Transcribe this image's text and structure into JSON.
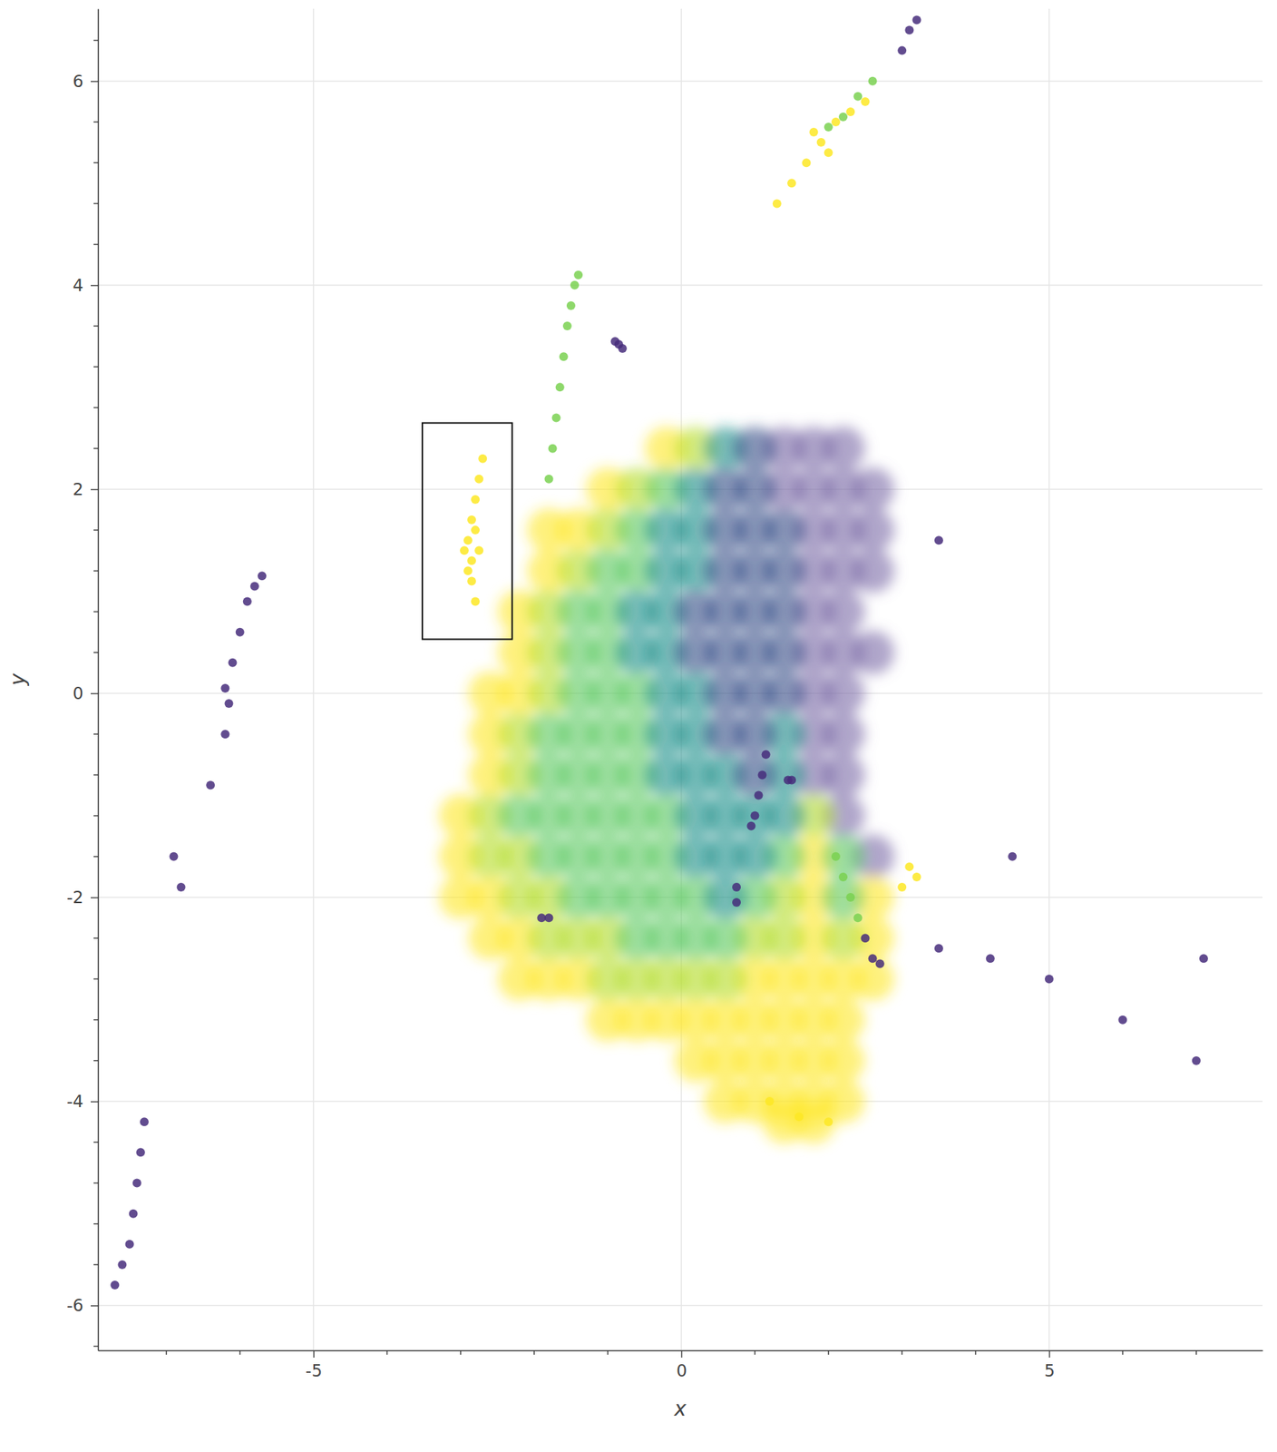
{
  "chart_data": {
    "type": "scatter",
    "x_label": "x",
    "y_label": "y",
    "xlim": [
      -7.93,
      7.9
    ],
    "ylim": [
      -6.44,
      6.71
    ],
    "xticks": [
      -5,
      0,
      5
    ],
    "yticks": [
      -6,
      -4,
      -2,
      0,
      2,
      4,
      6
    ],
    "x_minor_ticks": [
      -7,
      -6,
      -4,
      -3,
      -2,
      -1,
      1,
      2,
      3,
      4,
      6,
      7
    ],
    "y_minor_ticks": [
      -6.4,
      -5.6,
      -5.2,
      -4.8,
      -4.4,
      -3.6,
      -3.2,
      -2.8,
      -2.4,
      -1.6,
      -1.2,
      -0.8,
      -0.4,
      0.4,
      0.8,
      1.2,
      1.6,
      2.4,
      2.8,
      3.2,
      3.6,
      4.4,
      4.8,
      5.2,
      5.6,
      6.4
    ],
    "grid": true,
    "selection": {
      "x": [
        -3.52,
        -2.3
      ],
      "y": [
        0.53,
        2.65
      ]
    },
    "series": [
      {
        "color": "#7b6ba6",
        "marker": "circle",
        "x": [
          1.4,
          1.8,
          2.2,
          1.4,
          1.8,
          2.2,
          2.6,
          1.8,
          2.2,
          2.6,
          1.8,
          2.2,
          2.6,
          1.8,
          2.2,
          1.8,
          2.2,
          2.6,
          1.8,
          2.2,
          1.8,
          2.2,
          1.8,
          2.2,
          2.2,
          2.6
        ],
        "values": [
          2.4,
          2.4,
          2.4,
          2.0,
          2.0,
          2.0,
          2.0,
          1.6,
          1.6,
          1.6,
          1.2,
          1.2,
          1.2,
          0.8,
          0.8,
          0.4,
          0.4,
          0.4,
          0,
          0,
          -0.4,
          -0.4,
          -0.8,
          -0.8,
          -1.2,
          -1.6
        ]
      },
      {
        "color": "#fde725",
        "marker": "circle",
        "x": [
          -0.2,
          -1.0,
          -1.8,
          -1.4,
          -1.8,
          -2.2,
          -2.2,
          -2.6,
          -2.2,
          -2.6,
          -2.6,
          -3.0,
          -3.0,
          1.8,
          -3.0,
          -2.6,
          1.8,
          2.6,
          -2.6,
          -2.2,
          1.8,
          2.6,
          -2.2,
          -1.8,
          -1.4,
          1.0,
          1.4,
          1.8,
          2.2,
          2.6,
          -1.0,
          -0.6,
          -0.2,
          0.2,
          0.6,
          1.0,
          1.4,
          1.8,
          2.2,
          0.2,
          0.6,
          1.0,
          1.4,
          1.8,
          2.2,
          0.6,
          1.0,
          1.4,
          1.8,
          2.2,
          1.4,
          1.8
        ],
        "values": [
          2.4,
          2.0,
          1.6,
          1.6,
          1.2,
          0.8,
          0.4,
          0,
          0,
          -0.4,
          -0.8,
          -1.2,
          -1.6,
          -1.6,
          -2.0,
          -2.0,
          -2.0,
          -2.0,
          -2.4,
          -2.4,
          -2.4,
          -2.4,
          -2.8,
          -2.8,
          -2.8,
          -2.8,
          -2.8,
          -2.8,
          -2.8,
          -2.8,
          -3.2,
          -3.2,
          -3.2,
          -3.2,
          -3.2,
          -3.2,
          -3.2,
          -3.2,
          -3.2,
          -3.6,
          -3.6,
          -3.6,
          -3.6,
          -3.6,
          -3.6,
          -4.0,
          -4.0,
          -4.0,
          -4.0,
          -4.0,
          -4.2,
          -4.2
        ]
      },
      {
        "color": "#b5de2b",
        "marker": "circle",
        "x": [
          0.2,
          -0.6,
          -1.0,
          -1.4,
          -1.8,
          -1.8,
          -1.8,
          -2.2,
          -2.2,
          -2.6,
          1.8,
          -2.6,
          -2.2,
          -2.2,
          -1.8,
          1.4,
          -1.8,
          -1.4,
          -1.0,
          1.0,
          1.4,
          2.2,
          -1.0,
          -0.6,
          -0.2,
          0.2,
          0.6
        ],
        "values": [
          2.4,
          2.0,
          1.6,
          1.2,
          0.8,
          0.4,
          0,
          -0.4,
          -0.8,
          -1.2,
          -1.2,
          -1.6,
          -1.6,
          -2.0,
          -2.0,
          -2.0,
          -2.4,
          -2.4,
          -2.4,
          -2.4,
          -2.4,
          -2.4,
          -2.8,
          -2.8,
          -2.8,
          -2.8,
          -2.8
        ]
      },
      {
        "color": "#5ec962",
        "marker": "circle",
        "x": [
          -0.2,
          -0.6,
          -1.0,
          -0.6,
          -1.4,
          -1.0,
          -1.4,
          -1.0,
          -1.4,
          -1.0,
          -0.6,
          -1.8,
          -1.4,
          -1.0,
          -0.6,
          -1.8,
          -1.4,
          -1.0,
          -0.6,
          -2.2,
          -1.8,
          -1.4,
          -1.0,
          -0.6,
          -0.2,
          -1.8,
          -1.4,
          -1.0,
          -0.6,
          -0.2,
          1.4,
          2.2,
          -1.4,
          -1.0,
          -0.6,
          -0.2,
          0.2,
          1.0,
          2.2,
          -0.6,
          -0.2,
          0.2,
          0.6
        ],
        "values": [
          2.0,
          1.6,
          1.2,
          1.2,
          0.8,
          0.8,
          0.4,
          0.4,
          0,
          0,
          0,
          -0.4,
          -0.4,
          -0.4,
          -0.4,
          -0.8,
          -0.8,
          -0.8,
          -0.8,
          -1.2,
          -1.2,
          -1.2,
          -1.2,
          -1.2,
          -1.2,
          -1.6,
          -1.6,
          -1.6,
          -1.6,
          -1.6,
          -1.6,
          -1.6,
          -2.0,
          -2.0,
          -2.0,
          -2.0,
          -2.0,
          -2.0,
          -2.0,
          -2.4,
          -2.4,
          -2.4,
          -2.4
        ]
      },
      {
        "color": "#21918c",
        "marker": "circle",
        "x": [
          0.6,
          0.2,
          -0.2,
          0.2,
          -0.2,
          0.2,
          -0.6,
          -0.2,
          -0.6,
          -0.2,
          -0.2,
          0.2,
          -0.2,
          0.2,
          1.4,
          -0.2,
          0.2,
          0.6,
          1.4,
          0.2,
          0.6,
          1.0,
          1.4,
          0.2,
          0.6,
          1.0,
          0.6
        ],
        "values": [
          2.4,
          2.0,
          1.6,
          1.6,
          1.2,
          1.2,
          0.8,
          0.8,
          0.4,
          0.4,
          0,
          0,
          -0.4,
          -0.4,
          -0.4,
          -0.8,
          -0.8,
          -0.8,
          -0.8,
          -1.2,
          -1.2,
          -1.2,
          -1.2,
          -1.6,
          -1.6,
          -1.6,
          -2.0
        ]
      },
      {
        "color": "#3b528b",
        "marker": "circle",
        "x": [
          1.0,
          0.6,
          1.0,
          0.6,
          1.0,
          1.4,
          0.6,
          1.0,
          1.4,
          0.2,
          0.6,
          1.0,
          1.4,
          0.2,
          0.6,
          1.0,
          1.4,
          0.6,
          1.0,
          1.4,
          0.6,
          1.0,
          1.0
        ],
        "values": [
          2.4,
          2.0,
          2.0,
          1.6,
          1.6,
          1.6,
          1.2,
          1.2,
          1.2,
          0.8,
          0.8,
          0.8,
          0.8,
          0.4,
          0.4,
          0.4,
          0.4,
          0,
          0,
          0,
          -0.4,
          -0.4,
          -0.8
        ]
      },
      {
        "color": "#fde725",
        "marker": "point",
        "x": [
          -2.8,
          -2.85,
          -2.85,
          -2.9,
          -2.85,
          -2.8,
          -2.75,
          -2.7,
          -2.95,
          -2.75,
          -2.8,
          -2.9,
          1.3,
          1.5,
          1.7,
          1.9,
          1.8,
          2.1,
          2.3,
          2.5,
          2.0,
          1.2,
          1.6,
          2.0,
          3.1,
          3.2,
          3.0
        ],
        "values": [
          0.9,
          1.1,
          1.3,
          1.5,
          1.7,
          1.9,
          2.1,
          2.3,
          1.4,
          1.4,
          1.6,
          1.2,
          4.8,
          5.0,
          5.2,
          5.4,
          5.5,
          5.6,
          5.7,
          5.8,
          5.3,
          -4.0,
          -4.15,
          -4.2,
          -1.7,
          -1.8,
          -1.9
        ]
      },
      {
        "color": "#7ad151",
        "marker": "point",
        "x": [
          -1.8,
          -1.75,
          -1.7,
          -1.65,
          -1.6,
          -1.55,
          -1.5,
          -1.45,
          -1.4,
          2.0,
          2.2,
          2.4,
          2.6,
          2.1,
          2.2,
          2.3,
          2.4
        ],
        "values": [
          2.1,
          2.4,
          2.7,
          3.0,
          3.3,
          3.6,
          3.8,
          4.0,
          4.1,
          5.55,
          5.65,
          5.85,
          6.0,
          -1.6,
          -1.8,
          -2.0,
          -2.2
        ]
      },
      {
        "color": "#472d7b",
        "marker": "point",
        "x": [
          -0.9,
          -0.85,
          -0.8,
          -5.7,
          -5.8,
          -5.9,
          -6.0,
          -6.1,
          -6.2,
          -6.15,
          -6.2,
          -6.4,
          -6.9,
          -6.8,
          -7.3,
          -7.35,
          -7.4,
          -7.45,
          -7.5,
          -7.6,
          -7.7,
          1.15,
          1.1,
          1.05,
          1.0,
          0.95,
          1.45,
          1.5,
          0.75,
          0.75,
          -1.9,
          -1.8,
          2.5,
          2.6,
          2.7,
          3.0,
          3.1,
          3.2,
          3.5,
          4.2,
          5.0,
          6.0,
          7.1,
          7.0,
          4.5,
          3.5
        ],
        "values": [
          3.45,
          3.42,
          3.38,
          1.15,
          1.05,
          0.9,
          0.6,
          0.3,
          0.05,
          -0.1,
          -0.4,
          -0.9,
          -1.6,
          -1.9,
          -4.2,
          -4.5,
          -4.8,
          -5.1,
          -5.4,
          -5.6,
          -5.8,
          -0.6,
          -0.8,
          -1.0,
          -1.2,
          -1.3,
          -0.85,
          -0.85,
          -1.9,
          -2.05,
          -2.2,
          -2.2,
          -2.4,
          -2.6,
          -2.65,
          6.3,
          6.5,
          6.6,
          -2.5,
          -2.6,
          -2.8,
          -3.2,
          -2.6,
          -3.6,
          -1.6,
          1.5
        ]
      }
    ]
  }
}
